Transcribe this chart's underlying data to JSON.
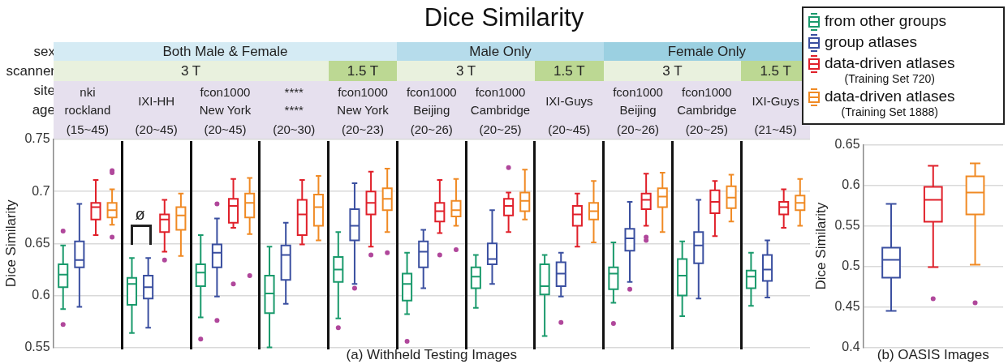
{
  "chart_data": [
    {
      "type": "box",
      "title": "Dice Similarity",
      "xlabel": "(a) Withheld Testing Images",
      "ylabel": "Dice Similarity",
      "categories": [
        "nki\nrockland\n(15~45)",
        "IXI-HH\n(20~45)",
        "fcon1000\nNew York\n(20~45)",
        "****\n****\n(20~30)",
        "fcon1000\nNew York\n(20~23)",
        "fcon1000\nBeijing\n(20~26)",
        "fcon1000\nCambridge\n(20~25)",
        "IXI-Guys\n(20~45)",
        "fcon1000\nBeijing\n(20~26)",
        "fcon1000\nCambridge\n(20~25)",
        "IXI-Guys\n(21~45)"
      ],
      "series": [
        {
          "name": "from other groups",
          "color": "#1a9a6c",
          "boxes": [
            {
              "low": 0.587,
              "q1": 0.608,
              "median": 0.62,
              "q3": 0.63,
              "high": 0.648,
              "outliers": [
                0.662,
                0.572
              ]
            },
            {
              "low": 0.564,
              "q1": 0.591,
              "median": 0.611,
              "q3": 0.617,
              "high": 0.636
            },
            {
              "low": 0.579,
              "q1": 0.609,
              "median": 0.622,
              "q3": 0.63,
              "high": 0.658,
              "outliers": [
                0.558
              ]
            },
            {
              "low": 0.55,
              "q1": 0.583,
              "median": 0.602,
              "q3": 0.619,
              "high": 0.647
            },
            {
              "low": 0.578,
              "q1": 0.613,
              "median": 0.625,
              "q3": 0.637,
              "high": 0.661,
              "outliers": [
                0.569
              ]
            },
            {
              "low": 0.582,
              "q1": 0.595,
              "median": 0.611,
              "q3": 0.621,
              "high": 0.641,
              "outliers": [
                0.556
              ]
            },
            {
              "low": 0.588,
              "q1": 0.607,
              "median": 0.618,
              "q3": 0.627,
              "high": 0.639
            },
            {
              "low": 0.561,
              "q1": 0.601,
              "median": 0.609,
              "q3": 0.63,
              "high": 0.639
            },
            {
              "low": 0.593,
              "q1": 0.606,
              "median": 0.621,
              "q3": 0.627,
              "high": 0.651,
              "outliers": [
                0.573
              ]
            },
            {
              "low": 0.58,
              "q1": 0.6,
              "median": 0.619,
              "q3": 0.635,
              "high": 0.652
            },
            {
              "low": 0.59,
              "q1": 0.607,
              "median": 0.618,
              "q3": 0.624,
              "high": 0.641
            }
          ]
        },
        {
          "name": "group atlases",
          "color": "#3a4fa0",
          "boxes": [
            {
              "low": 0.589,
              "q1": 0.627,
              "median": 0.634,
              "q3": 0.652,
              "high": 0.688
            },
            {
              "low": 0.569,
              "q1": 0.597,
              "median": 0.608,
              "q3": 0.619,
              "high": 0.636
            },
            {
              "low": 0.599,
              "q1": 0.627,
              "median": 0.641,
              "q3": 0.649,
              "high": 0.674,
              "outliers": [
                0.688,
                0.576
              ]
            },
            {
              "low": 0.592,
              "q1": 0.615,
              "median": 0.639,
              "q3": 0.648,
              "high": 0.67
            },
            {
              "low": 0.611,
              "q1": 0.653,
              "median": 0.667,
              "q3": 0.683,
              "high": 0.708,
              "outliers": [
                0.607
              ]
            },
            {
              "low": 0.607,
              "q1": 0.627,
              "median": 0.642,
              "q3": 0.652,
              "high": 0.663
            },
            {
              "low": 0.611,
              "q1": 0.63,
              "median": 0.635,
              "q3": 0.65,
              "high": 0.682
            },
            {
              "low": 0.599,
              "q1": 0.609,
              "median": 0.621,
              "q3": 0.632,
              "high": 0.641,
              "outliers": [
                0.574
              ]
            },
            {
              "low": 0.613,
              "q1": 0.643,
              "median": 0.655,
              "q3": 0.664,
              "high": 0.69,
              "outliers": [
                0.606
              ]
            },
            {
              "low": 0.597,
              "q1": 0.631,
              "median": 0.648,
              "q3": 0.661,
              "high": 0.692
            },
            {
              "low": 0.598,
              "q1": 0.614,
              "median": 0.625,
              "q3": 0.639,
              "high": 0.653
            }
          ]
        },
        {
          "name": "data-driven atlases\n(Training Set 720)",
          "color": "#e0202a",
          "boxes": [
            {
              "low": 0.658,
              "q1": 0.673,
              "median": 0.685,
              "q3": 0.689,
              "high": 0.711
            },
            {
              "low": 0.642,
              "q1": 0.661,
              "median": 0.673,
              "q3": 0.678,
              "high": 0.692,
              "outliers": [
                0.634
              ]
            },
            {
              "low": 0.665,
              "q1": 0.67,
              "median": 0.686,
              "q3": 0.693,
              "high": 0.712,
              "outliers": [
                0.611
              ]
            },
            {
              "low": 0.649,
              "q1": 0.658,
              "median": 0.678,
              "q3": 0.692,
              "high": 0.711
            },
            {
              "low": 0.647,
              "q1": 0.678,
              "median": 0.689,
              "q3": 0.7,
              "high": 0.719,
              "outliers": [
                0.639
              ]
            },
            {
              "low": 0.66,
              "q1": 0.671,
              "median": 0.681,
              "q3": 0.689,
              "high": 0.711,
              "outliers": [
                0.639
              ]
            },
            {
              "low": 0.661,
              "q1": 0.677,
              "median": 0.686,
              "q3": 0.693,
              "high": 0.699,
              "outliers": [
                0.723
              ]
            },
            {
              "low": 0.647,
              "q1": 0.667,
              "median": 0.678,
              "q3": 0.686,
              "high": 0.698
            },
            {
              "low": 0.667,
              "q1": 0.683,
              "median": 0.692,
              "q3": 0.698,
              "high": 0.717,
              "outliers": [
                0.656,
                0.653
              ]
            },
            {
              "low": 0.657,
              "q1": 0.679,
              "median": 0.69,
              "q3": 0.701,
              "high": 0.71
            },
            {
              "low": 0.665,
              "q1": 0.678,
              "median": 0.685,
              "q3": 0.69,
              "high": 0.702
            }
          ]
        },
        {
          "name": "data-driven atlases\n(Training Set 1888)",
          "color": "#f08a24",
          "boxes": [
            {
              "low": 0.668,
              "q1": 0.675,
              "median": 0.682,
              "q3": 0.689,
              "high": 0.702,
              "outliers": [
                0.72,
                0.718,
                0.656
              ]
            },
            {
              "low": 0.638,
              "q1": 0.663,
              "median": 0.677,
              "q3": 0.685,
              "high": 0.698
            },
            {
              "low": 0.659,
              "q1": 0.675,
              "median": 0.689,
              "q3": 0.698,
              "high": 0.713,
              "outliers": [
                0.619
              ]
            },
            {
              "low": 0.653,
              "q1": 0.667,
              "median": 0.685,
              "q3": 0.697,
              "high": 0.715
            },
            {
              "low": 0.661,
              "q1": 0.682,
              "median": 0.693,
              "q3": 0.703,
              "high": 0.722,
              "outliers": [
                0.641
              ]
            },
            {
              "low": 0.667,
              "q1": 0.676,
              "median": 0.682,
              "q3": 0.691,
              "high": 0.712,
              "outliers": [
                0.644
              ]
            },
            {
              "low": 0.673,
              "q1": 0.681,
              "median": 0.691,
              "q3": 0.699,
              "high": 0.721
            },
            {
              "low": 0.651,
              "q1": 0.673,
              "median": 0.681,
              "q3": 0.689,
              "high": 0.71
            },
            {
              "low": 0.661,
              "q1": 0.685,
              "median": 0.695,
              "q3": 0.703,
              "high": 0.718
            },
            {
              "low": 0.671,
              "q1": 0.684,
              "median": 0.694,
              "q3": 0.705,
              "high": 0.716
            },
            {
              "low": 0.667,
              "q1": 0.682,
              "median": 0.689,
              "q3": 0.696,
              "high": 0.712
            }
          ]
        }
      ],
      "annotations": [
        "sex",
        "scanner",
        "site",
        "age",
        "Both Male & Female",
        "Male Only",
        "Female Only",
        "3 T",
        "1.5 T",
        "3 T",
        "1.5 T",
        "3 T",
        "1.5 T",
        {
          "text": "ø",
          "x": "IXI-HH\n(20~45)",
          "y": 0.668
        }
      ],
      "ylim": [
        0.55,
        0.75
      ],
      "yticks": [
        0.55,
        0.6,
        0.65,
        0.7,
        0.75
      ],
      "grid": "y",
      "legend": "top right"
    },
    {
      "type": "box",
      "xlabel": "(b) OASIS Images",
      "ylabel": "Dice Similarity",
      "categories": [
        null
      ],
      "series": [
        {
          "color": "#3a4fa0",
          "boxes": [
            {
              "low": 0.445,
              "q1": 0.486,
              "median": 0.508,
              "q3": 0.523,
              "high": 0.577
            }
          ]
        },
        {
          "color": "#e0202a",
          "boxes": [
            {
              "low": 0.499,
              "q1": 0.555,
              "median": 0.582,
              "q3": 0.598,
              "high": 0.624,
              "outliers": [
                0.46
              ]
            }
          ]
        },
        {
          "color": "#f08a24",
          "boxes": [
            {
              "low": 0.502,
              "q1": 0.564,
              "median": 0.591,
              "q3": 0.611,
              "high": 0.627,
              "outliers": [
                0.455
              ]
            }
          ]
        }
      ],
      "ylim": [
        0.4,
        0.65
      ],
      "yticks": [
        0.4,
        0.45,
        0.5,
        0.55,
        0.6,
        0.65
      ],
      "grid": "y"
    }
  ]
}
